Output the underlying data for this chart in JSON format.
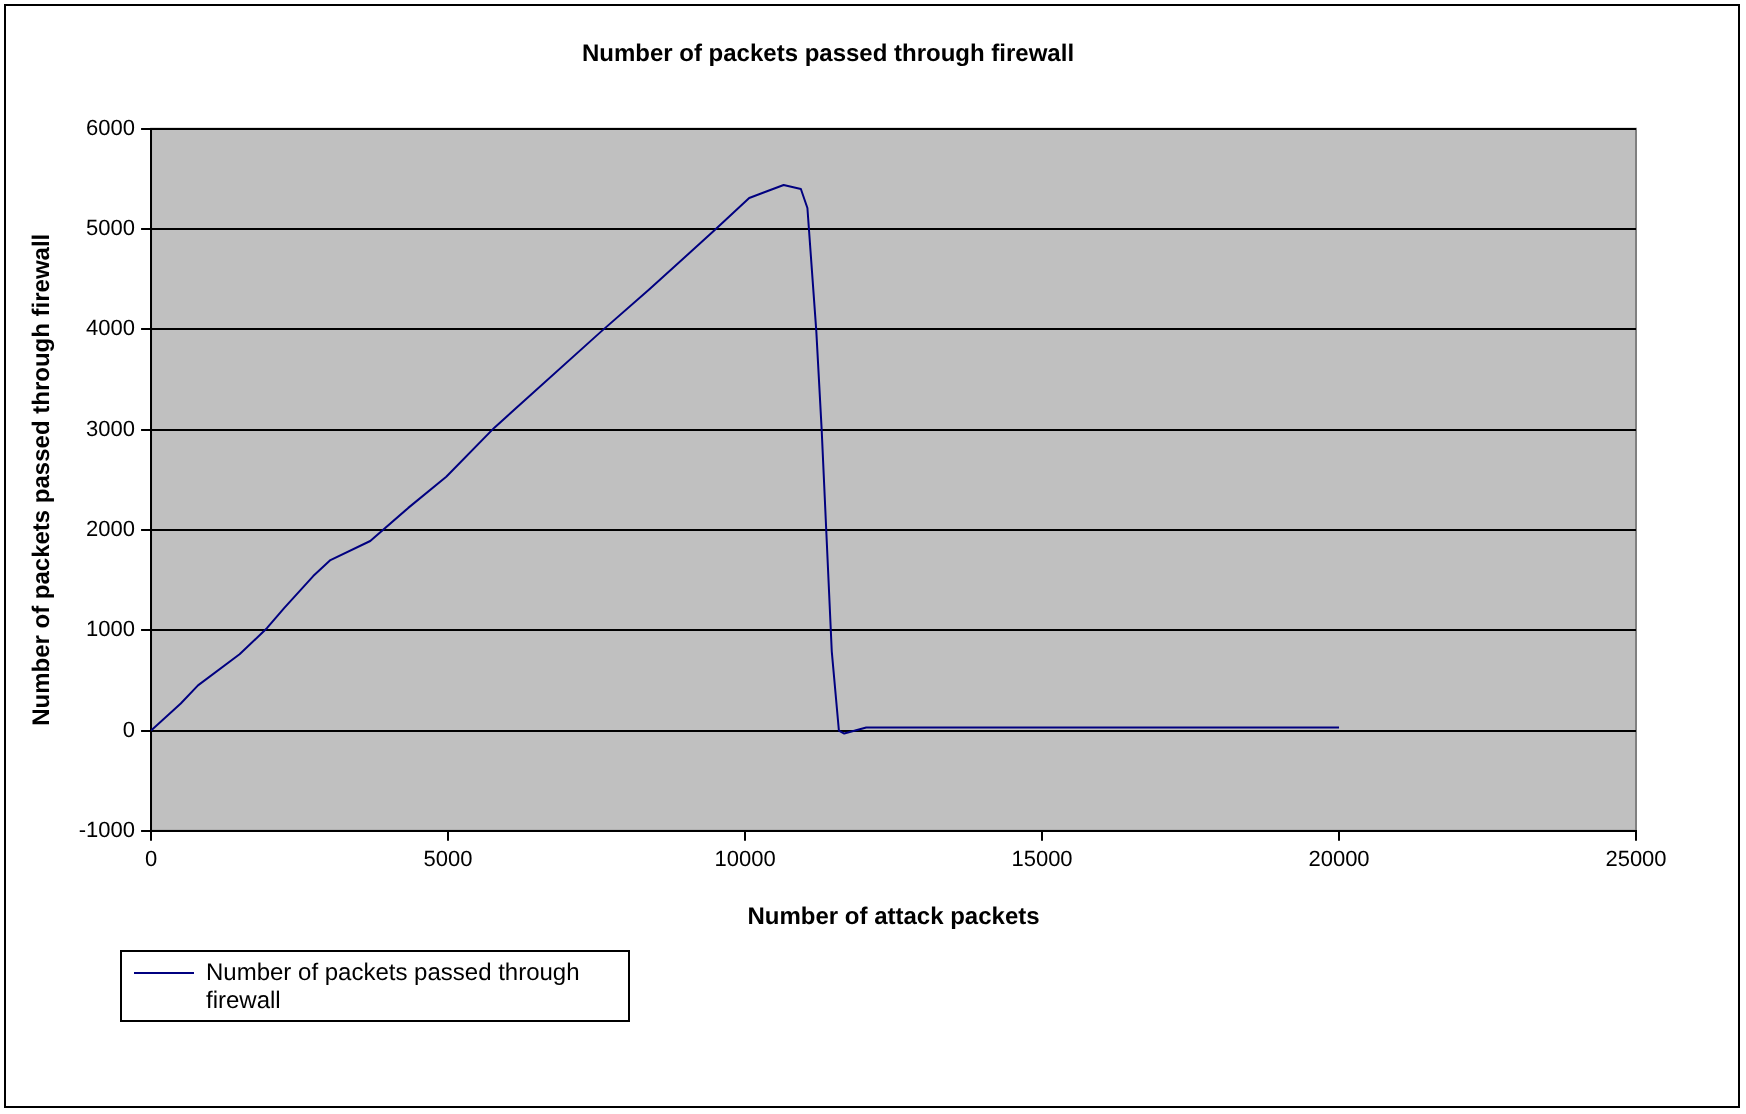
{
  "chart_data": {
    "type": "line",
    "title": "Number of packets passed through firewall",
    "xlabel": "Number of attack packets",
    "ylabel": "Number of packets passed through firewall",
    "x": [
      0,
      500,
      790,
      1490,
      1950,
      2240,
      2730,
      3020,
      3690,
      4330,
      4970,
      5780,
      7580,
      8390,
      9490,
      10070,
      10650,
      10940,
      11050,
      11200,
      11290,
      11370,
      11460,
      11580,
      11670,
      12040,
      15000,
      20000
    ],
    "series": [
      {
        "name": "Number of packets passed through firewall",
        "color": "#000080",
        "values": [
          0,
          270,
          450,
          760,
          1020,
          1220,
          1540,
          1700,
          1890,
          2220,
          2530,
          3020,
          3980,
          4400,
          4990,
          5310,
          5440,
          5400,
          5210,
          3980,
          3000,
          1960,
          790,
          0,
          -30,
          30,
          30,
          30
        ]
      }
    ],
    "xlim": [
      0,
      25000
    ],
    "xticks": [
      0,
      5000,
      10000,
      15000,
      20000,
      25000
    ],
    "ylim": [
      -1000,
      6000
    ],
    "yticks": [
      -1000,
      0,
      1000,
      2000,
      3000,
      4000,
      5000,
      6000
    ],
    "grid": "y",
    "legend": "bottom left",
    "marker": "none",
    "line_style": "solid"
  }
}
